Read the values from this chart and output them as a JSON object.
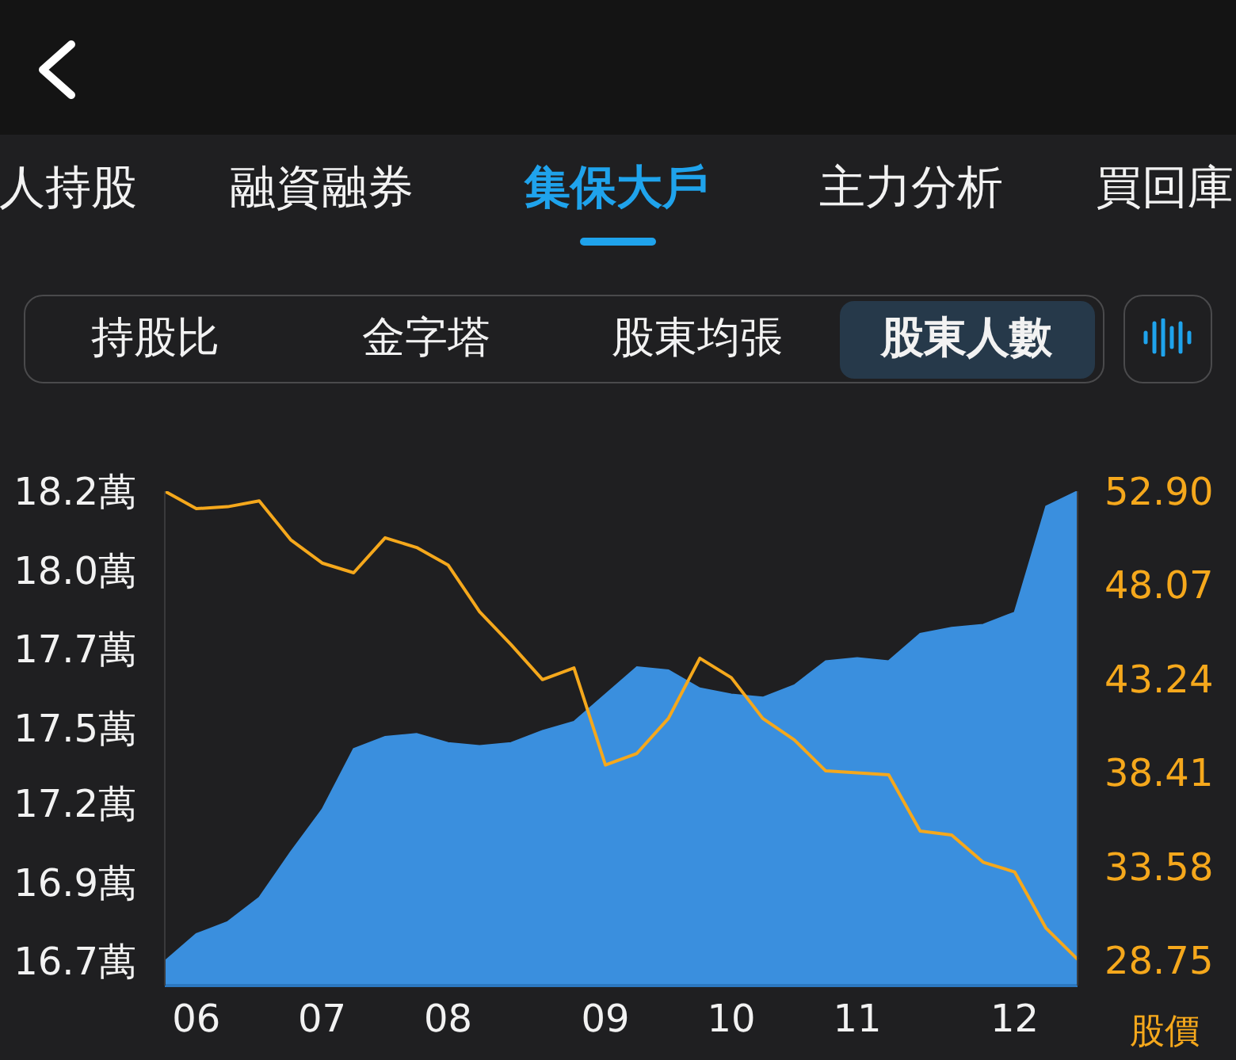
{
  "chart_data": {
    "type": "area",
    "title": "集保大戶",
    "subtitle": "股東人數",
    "y2label": "股價",
    "annotations": [
      "人持股",
      "融資融券",
      "主力分析",
      "買回庫",
      "持股比",
      "金字塔",
      "股東均張"
    ],
    "categories": [
      null,
      "06",
      null,
      null,
      null,
      "07",
      null,
      null,
      null,
      "08",
      null,
      null,
      null,
      null,
      "09",
      null,
      null,
      null,
      "10",
      null,
      null,
      null,
      "11",
      null,
      null,
      null,
      null,
      "12",
      null,
      null
    ],
    "series": [
      {
        "color": "#3a8fde",
        "values": [
          16.68,
          16.77,
          16.81,
          16.89,
          17.04,
          17.18,
          17.38,
          17.42,
          17.43,
          17.4,
          17.39,
          17.4,
          17.44,
          17.47,
          17.56,
          17.65,
          17.64,
          17.58,
          17.56,
          17.55,
          17.59,
          17.67,
          17.68,
          17.67,
          17.76,
          17.78,
          17.79,
          17.83,
          18.18,
          18.23
        ]
      },
      {
        "type": "line",
        "color": "#f5a81c",
        "axis": "y2",
        "values": [
          52.9,
          52.0,
          52.1,
          52.4,
          50.4,
          49.2,
          48.7,
          50.5,
          50.0,
          49.1,
          46.7,
          45.0,
          43.2,
          43.8,
          38.8,
          39.4,
          41.2,
          44.3,
          43.3,
          41.2,
          40.1,
          38.5,
          38.4,
          38.3,
          35.4,
          35.2,
          33.8,
          33.3,
          30.4,
          28.8
        ]
      }
    ],
    "ylim": [
      16.6,
      18.23
    ],
    "yticks": [
      {
        "value": 16.68,
        "label": "16.7萬"
      },
      {
        "value": 16.94,
        "label": "16.9萬"
      },
      {
        "value": 17.2,
        "label": "17.2萬"
      },
      {
        "value": 17.45,
        "label": "17.5萬"
      },
      {
        "value": 17.71,
        "label": "17.7萬"
      },
      {
        "value": 17.97,
        "label": "18.0萬"
      },
      {
        "value": 18.23,
        "label": "18.2萬"
      }
    ],
    "y2lim": [
      27.45,
      52.9
    ],
    "y2ticks": [
      28.75,
      33.58,
      38.41,
      43.24,
      48.07,
      {
        "value": 52.9,
        "label": "52.90"
      }
    ],
    "marker": "none",
    "line_style": "solid"
  }
}
